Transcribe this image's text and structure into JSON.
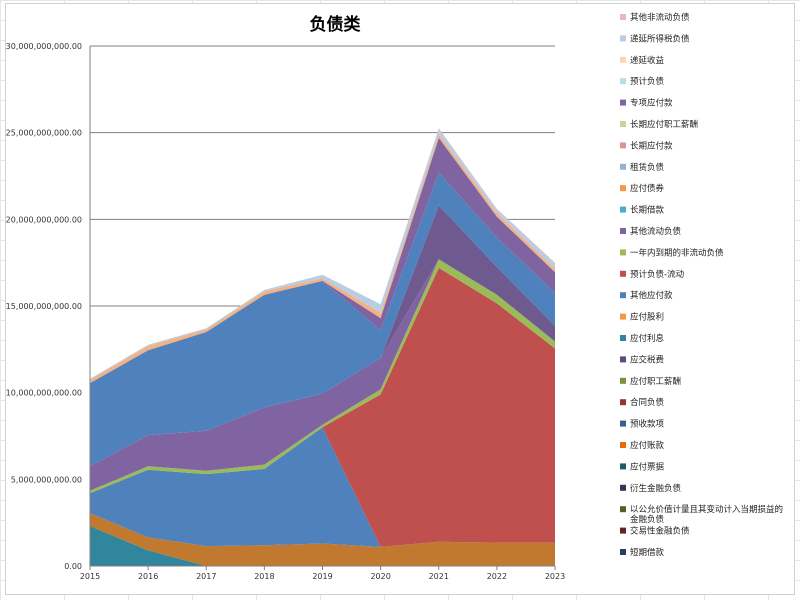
{
  "chart_data": {
    "type": "area",
    "stacked": true,
    "title": "负债类",
    "xlabel": "",
    "ylabel": "",
    "x": [
      "2015",
      "2016",
      "2017",
      "2018",
      "2019",
      "2020",
      "2021",
      "2022",
      "2023"
    ],
    "ylim": [
      0,
      30000000000
    ],
    "yticks": [
      "0.00",
      "5,000,000,000.00",
      "10,000,000,000.00",
      "15,000,000,000.00",
      "20,000,000,000.00",
      "25,000,000,000.00",
      "30,000,000,000.00"
    ],
    "ytick_values": [
      0,
      5000000000,
      10000000000,
      15000000000,
      20000000000,
      25000000000,
      30000000000
    ],
    "grid": true,
    "legend_position": "right",
    "legend": [
      {
        "name": "其他非流动负债",
        "color": "#e6b9b8"
      },
      {
        "name": "递延所得税负债",
        "color": "#b9cde5"
      },
      {
        "name": "递延收益",
        "color": "#fcd5b5"
      },
      {
        "name": "预计负债",
        "color": "#b7dee8"
      },
      {
        "name": "专项应付款",
        "color": "#8064a2"
      },
      {
        "name": "长期应付职工薪酬",
        "color": "#c3d69b"
      },
      {
        "name": "长期应付款",
        "color": "#d99694"
      },
      {
        "name": "租赁负债",
        "color": "#95b3d7"
      },
      {
        "name": "应付债券",
        "color": "#f79646"
      },
      {
        "name": "长期借款",
        "color": "#4bacc6"
      },
      {
        "name": "其他流动负债",
        "color": "#8064a2"
      },
      {
        "name": "一年内到期的非流动负债",
        "color": "#9bbb59"
      },
      {
        "name": "预计负债-流动",
        "color": "#c0504d"
      },
      {
        "name": "其他应付款",
        "color": "#4f81bd"
      },
      {
        "name": "应付股利",
        "color": "#f79646"
      },
      {
        "name": "应付利息",
        "color": "#31859c"
      },
      {
        "name": "应交税费",
        "color": "#604a7b"
      },
      {
        "name": "应付职工薪酬",
        "color": "#77933c"
      },
      {
        "name": "合同负债",
        "color": "#953735"
      },
      {
        "name": "预收款项",
        "color": "#376092"
      },
      {
        "name": "应付账款",
        "color": "#e46c0a"
      },
      {
        "name": "应付票据",
        "color": "#215968"
      },
      {
        "name": "衍生金融负债",
        "color": "#3f3151"
      },
      {
        "name": "以公允价值计量且其变动计入当期损益的金融负债",
        "color": "#4f6228"
      },
      {
        "name": "交易性金融负债",
        "color": "#632523"
      },
      {
        "name": "短期借款",
        "color": "#254061"
      }
    ],
    "series": [
      {
        "name": "应付票据",
        "color": "#31859c",
        "values": [
          2300000000,
          900000000,
          0,
          0,
          0,
          0,
          0,
          0,
          0
        ]
      },
      {
        "name": "应付账款",
        "color": "#c0792f",
        "values": [
          750000000,
          750000000,
          1150000000,
          1200000000,
          1300000000,
          1100000000,
          1400000000,
          1350000000,
          1350000000
        ]
      },
      {
        "name": "预收款项",
        "color": "#4f81bd",
        "values": [
          1150000000,
          3900000000,
          4150000000,
          4400000000,
          6700000000,
          0,
          0,
          0,
          0
        ]
      },
      {
        "name": "合同负债",
        "color": "#c0504d",
        "values": [
          0,
          0,
          0,
          0,
          0,
          8800000000,
          15800000000,
          13800000000,
          11200000000
        ]
      },
      {
        "name": "应付职工薪酬",
        "color": "#9bbb59",
        "values": [
          150000000,
          200000000,
          200000000,
          250000000,
          150000000,
          300000000,
          500000000,
          500000000,
          400000000
        ]
      },
      {
        "name": "应交税费",
        "color": "#8064a2",
        "values": [
          1400000000,
          1800000000,
          2300000000,
          3300000000,
          1800000000,
          1800000000,
          0,
          0,
          0
        ]
      },
      {
        "name": "其他流动负债",
        "color": "#6f5a8f",
        "values": [
          0,
          0,
          0,
          0,
          0,
          0,
          3100000000,
          1600000000,
          900000000
        ]
      },
      {
        "name": "其他应付款",
        "color": "#4f81bd",
        "values": [
          4800000000,
          4900000000,
          5700000000,
          6500000000,
          6500000000,
          1600000000,
          1900000000,
          1700000000,
          1900000000
        ]
      },
      {
        "name": "其他流动负债(上)",
        "color": "#8064a2",
        "values": [
          0,
          0,
          0,
          0,
          0,
          700000000,
          2000000000,
          1200000000,
          1200000000
        ]
      },
      {
        "name": "递延收益",
        "color": "#f4b183",
        "values": [
          200000000,
          250000000,
          150000000,
          200000000,
          150000000,
          300000000,
          200000000,
          200000000,
          200000000
        ]
      },
      {
        "name": "递延所得税负债",
        "color": "#b9cde5",
        "values": [
          50000000,
          70000000,
          70000000,
          80000000,
          200000000,
          500000000,
          300000000,
          200000000,
          300000000
        ]
      },
      {
        "name": "其他非流动负债",
        "color": "#e6b9b8",
        "values": [
          0,
          0,
          0,
          0,
          0,
          0,
          50000000,
          50000000,
          50000000
        ]
      }
    ]
  }
}
